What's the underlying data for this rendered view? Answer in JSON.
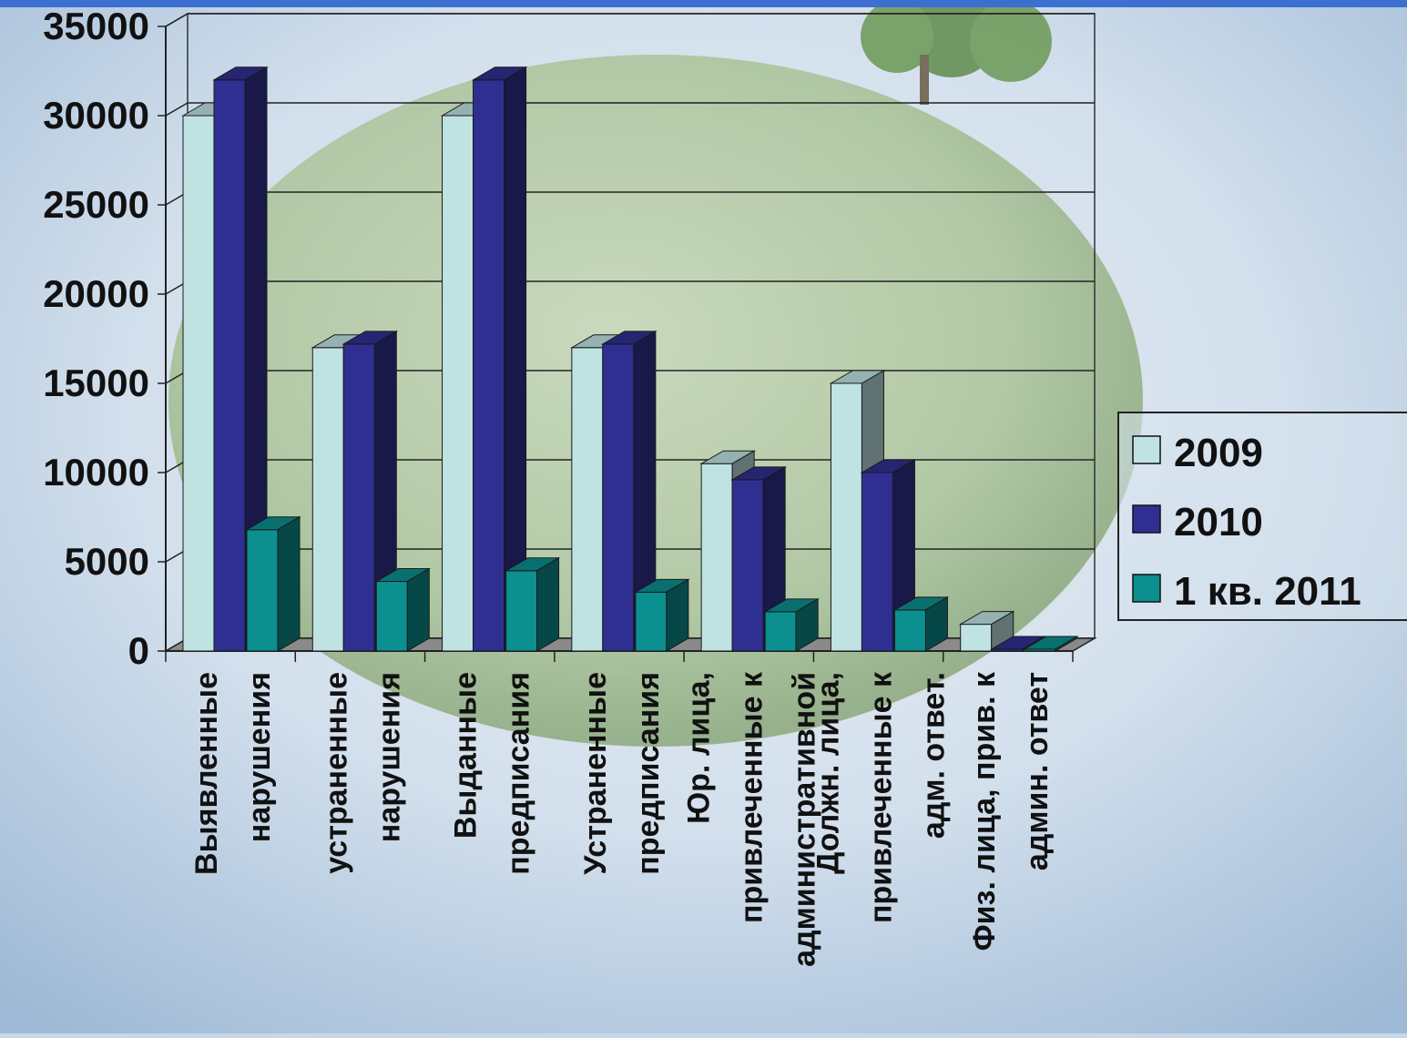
{
  "chart_data": {
    "type": "bar",
    "categories": [
      [
        "Выявленные",
        "нарушения"
      ],
      [
        "устраненные",
        "нарушения"
      ],
      [
        "Выданные",
        "предписания"
      ],
      [
        "Устраненные",
        "предписания"
      ],
      [
        "Юр. лица,",
        "привлеченные к",
        "административной"
      ],
      [
        "Должн. лица,",
        "привлеченные к",
        "адм. ответ."
      ],
      [
        "Физ. лица, прив. к",
        "админ. ответ"
      ]
    ],
    "series": [
      {
        "name": "2009",
        "values": [
          30000,
          17000,
          30000,
          17000,
          10500,
          15000,
          1500
        ],
        "color": "#bfe3e3"
      },
      {
        "name": "2010",
        "values": [
          32000,
          17200,
          32000,
          17200,
          9600,
          10000,
          100
        ],
        "color": "#2f2f92"
      },
      {
        "name": "1 кв. 2011",
        "values": [
          6800,
          3900,
          4500,
          3300,
          2200,
          2300,
          100
        ],
        "color": "#0c8f8f"
      }
    ],
    "y_ticks": [
      "0",
      "5000",
      "10000",
      "15000",
      "20000",
      "25000",
      "30000",
      "35000"
    ],
    "ylim": [
      0,
      35000
    ],
    "grid": true,
    "legend_position": "right",
    "view": "3d-clustered-column"
  }
}
